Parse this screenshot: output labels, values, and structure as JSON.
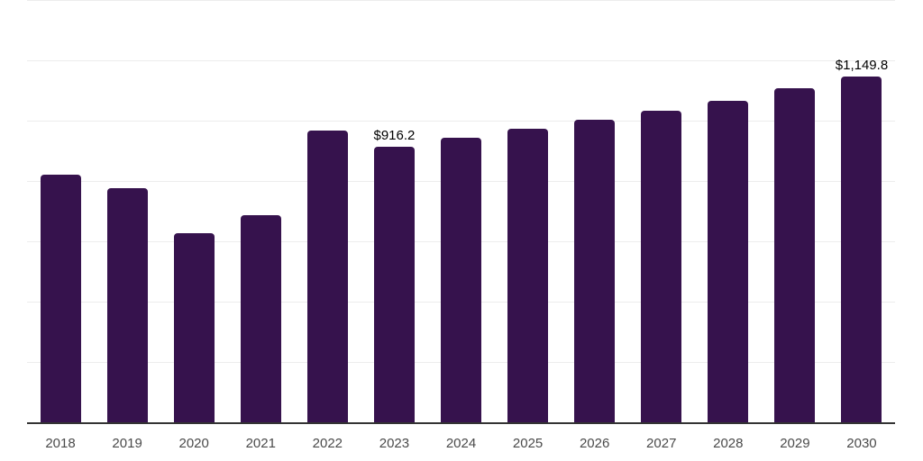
{
  "chart_data": {
    "type": "bar",
    "title": "",
    "xlabel": "",
    "ylabel": "",
    "categories": [
      "2018",
      "2019",
      "2020",
      "2021",
      "2022",
      "2023",
      "2024",
      "2025",
      "2026",
      "2027",
      "2028",
      "2029",
      "2030"
    ],
    "values": [
      824,
      779,
      630,
      690,
      971,
      916.2,
      945,
      975,
      1006,
      1037,
      1070,
      1110,
      1149.8
    ],
    "data_labels": [
      {
        "category": "2023",
        "text": "$916.2"
      },
      {
        "category": "2030",
        "text": "$1,149.8"
      }
    ],
    "ylim": [
      0,
      1400
    ],
    "ystep": 200,
    "yticks_visible": false,
    "grid": "horizontal",
    "legend": "none",
    "colors": {
      "bar": "#36124d",
      "gridline": "#ededed",
      "axis_line": "#333333",
      "tick_label": "#4a4a4a",
      "data_label": "#000000",
      "background": "#ffffff"
    }
  }
}
